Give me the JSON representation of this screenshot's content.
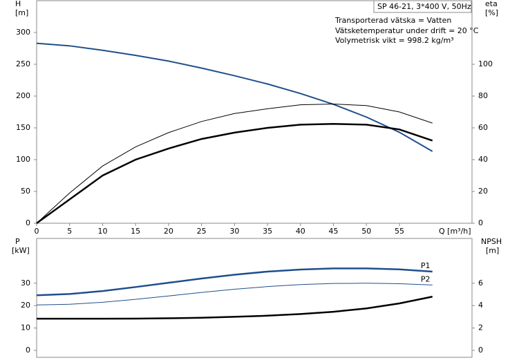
{
  "chart_data": [
    {
      "type": "line",
      "x_label": "Q [m³/h]",
      "y_label": "H",
      "y_unit": "[m]",
      "y2_label": "eta",
      "y2_unit": "[%]",
      "annotations": [
        "SP 46-21, 3*400 V, 50Hz",
        "Transporterad vätska = Vatten",
        "Vätsketemperatur under drift = 20 °C",
        "Volymetrisk vikt = 998.2 kg/m³"
      ],
      "xlim": [
        0,
        66
      ],
      "xticks": [
        0,
        5,
        10,
        15,
        20,
        25,
        30,
        35,
        40,
        45,
        50,
        55
      ],
      "ylim": [
        0,
        350
      ],
      "yticks": [
        0,
        50,
        100,
        150,
        200,
        250,
        300
      ],
      "y2lim": [
        0,
        140
      ],
      "y2ticks": [
        0,
        20,
        40,
        60,
        80,
        100
      ],
      "x": [
        0,
        5,
        10,
        15,
        20,
        25,
        30,
        35,
        40,
        45,
        50,
        55,
        60
      ],
      "series": [
        {
          "color": "#1f4e8c",
          "width": 2,
          "values": [
            283,
            279,
            272,
            264,
            255,
            244,
            232,
            219,
            204,
            187,
            167,
            143,
            113
          ]
        },
        {
          "color": "#000000",
          "width": 2.5,
          "axis": "y2",
          "values": [
            0,
            15,
            30,
            40,
            47,
            53,
            57,
            60,
            62,
            62.5,
            62,
            59,
            52
          ]
        },
        {
          "color": "#000000",
          "width": 1,
          "axis": "y2",
          "values": [
            0,
            19,
            36,
            48,
            57,
            64,
            69,
            72,
            74.5,
            75,
            74,
            70,
            63
          ]
        }
      ]
    },
    {
      "type": "line",
      "y_label": "P",
      "y_unit": "[kW]",
      "y2_label": "NPSH",
      "y2_unit": "[m]",
      "xlim": [
        0,
        66
      ],
      "ylim": [
        0,
        50
      ],
      "yticks": [
        0,
        10,
        20,
        30
      ],
      "y2lim": [
        0,
        10
      ],
      "y2ticks": [
        0,
        2,
        4,
        6
      ],
      "x": [
        0,
        5,
        10,
        15,
        20,
        25,
        30,
        35,
        40,
        45,
        50,
        55,
        60
      ],
      "series": [
        {
          "name": "P1",
          "color": "#1f4e8c",
          "width": 2.5,
          "values": [
            24.6,
            25.2,
            26.5,
            28.3,
            30.2,
            32.1,
            33.8,
            35.2,
            36.1,
            36.6,
            36.6,
            36.2,
            35.2
          ]
        },
        {
          "name": "P2",
          "color": "#1f4e8c",
          "width": 1,
          "values": [
            20.3,
            20.6,
            21.5,
            22.8,
            24.3,
            25.9,
            27.3,
            28.5,
            29.4,
            29.9,
            30.0,
            29.8,
            29.2
          ]
        },
        {
          "color": "#000000",
          "width": 2.5,
          "axis": "y2",
          "values": [
            2.83,
            2.83,
            2.83,
            2.84,
            2.87,
            2.92,
            3.0,
            3.1,
            3.25,
            3.45,
            3.75,
            4.2,
            4.8
          ]
        }
      ]
    }
  ]
}
